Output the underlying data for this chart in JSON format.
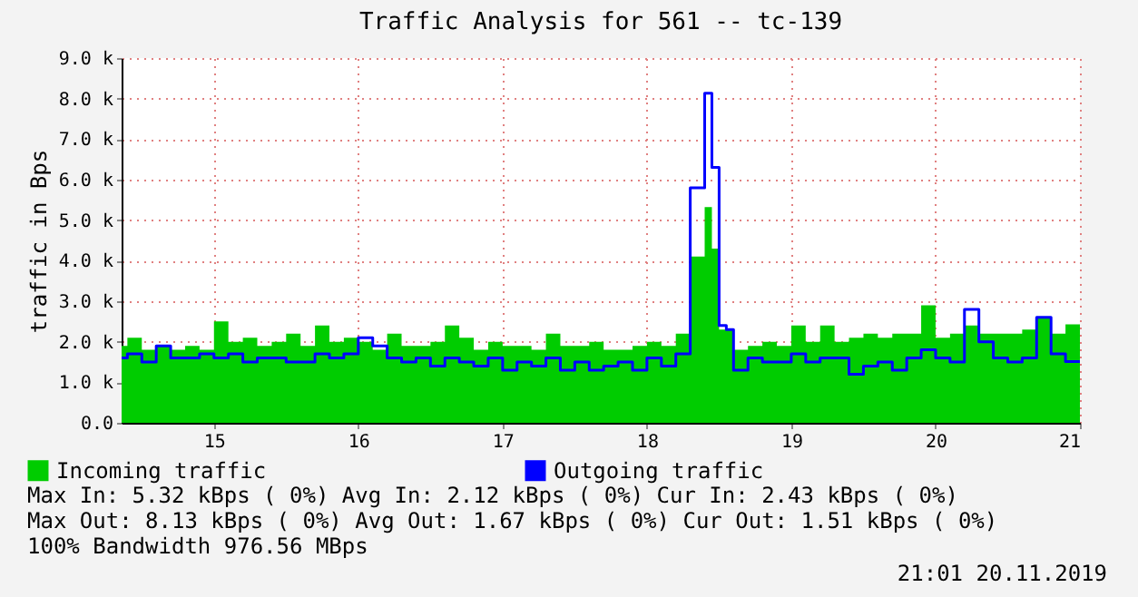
{
  "chart_data": {
    "type": "area",
    "title": "Traffic Analysis for 561 -- tc-139",
    "ylabel": "traffic in Bps",
    "x": [
      14.36,
      14.4,
      14.5,
      14.6,
      14.7,
      14.8,
      14.9,
      15.0,
      15.1,
      15.2,
      15.3,
      15.4,
      15.5,
      15.6,
      15.7,
      15.8,
      15.9,
      16.0,
      16.1,
      16.2,
      16.3,
      16.4,
      16.5,
      16.6,
      16.7,
      16.8,
      16.9,
      17.0,
      17.1,
      17.2,
      17.3,
      17.4,
      17.5,
      17.6,
      17.7,
      17.8,
      17.9,
      18.0,
      18.1,
      18.2,
      18.3,
      18.4,
      18.45,
      18.5,
      18.55,
      18.6,
      18.7,
      18.8,
      18.9,
      19.0,
      19.1,
      19.2,
      19.3,
      19.4,
      19.5,
      19.6,
      19.7,
      19.8,
      19.9,
      20.0,
      20.1,
      20.2,
      20.3,
      20.4,
      20.5,
      20.6,
      20.7,
      20.8,
      20.9,
      21.0
    ],
    "series": [
      {
        "name": "Incoming traffic",
        "color": "#00cc00",
        "values": [
          1900,
          2100,
          1800,
          1900,
          1800,
          1900,
          1800,
          2500,
          2000,
          2100,
          1900,
          2000,
          2200,
          1900,
          2400,
          2000,
          2100,
          2000,
          1800,
          2200,
          1900,
          1900,
          2000,
          2400,
          2100,
          1800,
          2000,
          1900,
          1900,
          1800,
          2200,
          1900,
          1900,
          2000,
          1800,
          1800,
          1900,
          2000,
          1900,
          2200,
          4100,
          5320,
          4300,
          2300,
          2300,
          1800,
          1900,
          2000,
          1900,
          2400,
          2000,
          2400,
          2000,
          2100,
          2200,
          2100,
          2200,
          2200,
          2900,
          2100,
          2200,
          2400,
          2200,
          2200,
          2200,
          2300,
          2600,
          2200,
          2430,
          2430
        ]
      },
      {
        "name": "Outgoing traffic",
        "type": "step",
        "color": "#0000ff",
        "values": [
          1600,
          1700,
          1500,
          1900,
          1600,
          1600,
          1700,
          1600,
          1700,
          1500,
          1600,
          1600,
          1500,
          1500,
          1700,
          1600,
          1700,
          2100,
          1900,
          1600,
          1500,
          1600,
          1400,
          1600,
          1500,
          1400,
          1600,
          1300,
          1500,
          1400,
          1600,
          1300,
          1500,
          1300,
          1400,
          1500,
          1300,
          1600,
          1400,
          1700,
          5800,
          8130,
          6300,
          2400,
          2300,
          1300,
          1600,
          1500,
          1500,
          1700,
          1500,
          1600,
          1600,
          1200,
          1400,
          1500,
          1300,
          1600,
          1800,
          1600,
          1500,
          2800,
          2000,
          1600,
          1500,
          1600,
          2600,
          1700,
          1510,
          1510
        ]
      }
    ],
    "xlim": [
      14.36,
      21.0
    ],
    "xticks": [
      15,
      16,
      17,
      18,
      19,
      20,
      21
    ],
    "ylim": [
      0,
      9000
    ],
    "yticks": [
      {
        "value": 0,
        "label": "0.0"
      },
      {
        "value": 1000,
        "label": "1.0 k"
      },
      {
        "value": 2000,
        "label": "2.0 k"
      },
      {
        "value": 3000,
        "label": "3.0 k"
      },
      {
        "value": 4000,
        "label": "4.0 k"
      },
      {
        "value": 5000,
        "label": "5.0 k"
      },
      {
        "value": 6000,
        "label": "6.0 k"
      },
      {
        "value": 7000,
        "label": "7.0 k"
      },
      {
        "value": 8000,
        "label": "8.0 k"
      },
      {
        "value": 9000,
        "label": "9.0 k"
      }
    ],
    "grid": true,
    "legend": "bottom",
    "annotations": [
      "Max In:   5.32 kBps ( 0%)  Avg In:   2.12 kBps ( 0%)  Cur In:   2.43 kBps ( 0%)",
      "Max Out:  8.13 kBps ( 0%)  Avg Out:  1.67 kBps ( 0%)  Cur Out:  1.51 kBps ( 0%)",
      "100% Bandwidth 976.56 MBps",
      "21:01 20.11.2019"
    ]
  }
}
